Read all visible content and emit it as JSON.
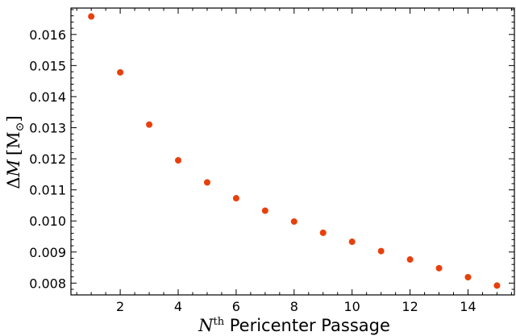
{
  "chart_data": {
    "type": "scatter",
    "title": "",
    "xlabel": {
      "prefix": "N",
      "superscript": "th",
      "text": " Pericenter Passage"
    },
    "ylabel": {
      "delta": "Δ",
      "symbol": "M",
      "unit": "[M",
      "unit_sub": "⊙",
      "close": "]"
    },
    "xlim": [
      0.3,
      15.6
    ],
    "ylim": [
      0.00762,
      0.01685
    ],
    "xticks": [
      2,
      4,
      6,
      8,
      10,
      12,
      14
    ],
    "xtick_labels": [
      "2",
      "4",
      "6",
      "8",
      "10",
      "12",
      "14"
    ],
    "yticks": [
      0.008,
      0.009,
      0.01,
      0.011,
      0.012,
      0.013,
      0.014,
      0.015,
      0.016
    ],
    "ytick_labels": [
      "0.008",
      "0.009",
      "0.010",
      "0.011",
      "0.012",
      "0.013",
      "0.014",
      "0.015",
      "0.016"
    ],
    "grid": false,
    "marker_color": "#e8400c",
    "series": [
      {
        "x": [
          1,
          2,
          3,
          4,
          5,
          6,
          7,
          8,
          9,
          10,
          11,
          12,
          13,
          14,
          15
        ],
        "y": [
          0.01658,
          0.01478,
          0.0131,
          0.01195,
          0.01124,
          0.01073,
          0.01033,
          0.00998,
          0.00962,
          0.00933,
          0.00903,
          0.00876,
          0.00848,
          0.00819,
          0.00792
        ]
      }
    ]
  }
}
